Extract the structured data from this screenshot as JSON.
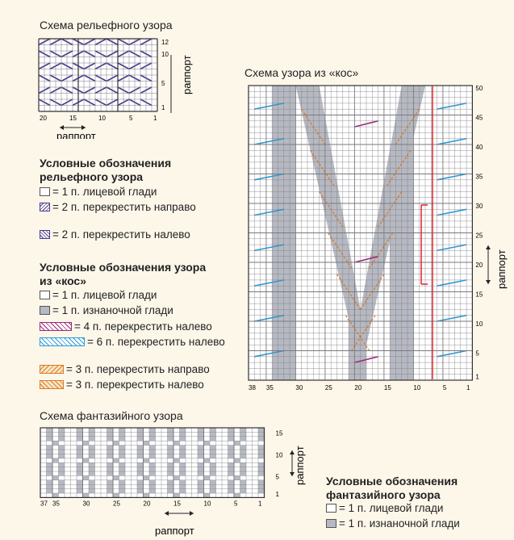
{
  "relief": {
    "title": "Схема рельефного узора",
    "row_labels": [
      "12",
      "10",
      "5",
      "1"
    ],
    "col_labels": [
      "20",
      "15",
      "10",
      "5",
      "1"
    ],
    "rapport_v": "раппорт",
    "rapport_h": "раппорт",
    "legend_title": "Условные обозначения рельефного узора",
    "legend": [
      {
        "text": "= 1 п. лицевой глади",
        "icon": "plain-cell-icon"
      },
      {
        "text": "= 2 п. перекрестить направо",
        "icon": "cross-right-icon"
      },
      {
        "text": "= 2 п. перекрестить налево",
        "icon": "cross-left-icon"
      }
    ]
  },
  "cables": {
    "title": "Схема узора из «кос»",
    "row_labels": [
      "50",
      "45",
      "40",
      "35",
      "30",
      "25",
      "20",
      "15",
      "10",
      "5",
      "1"
    ],
    "col_labels": [
      "38",
      "35",
      "30",
      "25",
      "20",
      "15",
      "10",
      "5",
      "1"
    ],
    "rapport_v": "раппорт",
    "legend_title": "Условные обозначения узора из «кос»",
    "legend": [
      {
        "text": "= 1 п. лицевой глади",
        "icon": "plain-cell-icon"
      },
      {
        "text": "= 1 п. изнаночной глади",
        "icon": "purl-cell-icon"
      },
      {
        "text": "= 4 п. перекрестить налево",
        "icon": "cross-4-left-icon"
      },
      {
        "text": "= 6 п. перекрестить налево",
        "icon": "cross-6-left-icon"
      },
      {
        "text": "= 3 п. перекрестить направо",
        "icon": "cross-3-right-icon"
      },
      {
        "text": "= 3 п. перекрестить налево",
        "icon": "cross-3-left-icon"
      }
    ]
  },
  "fancy": {
    "title": "Схема фантазийного узора",
    "row_labels": [
      "15",
      "10",
      "5",
      "1"
    ],
    "col_labels": [
      "37",
      "35",
      "30",
      "25",
      "20",
      "15",
      "10",
      "5",
      "1"
    ],
    "rapport_v": "раппорт",
    "rapport_h": "раппорт",
    "legend_title": "Условные обозначения фантазийного узора",
    "legend": [
      {
        "text": "= 1 п. лицевой глади",
        "icon": "plain-cell-icon"
      },
      {
        "text": "= 1 п. изнаночной глади",
        "icon": "purl-cell-icon"
      }
    ]
  },
  "colors": {
    "purl": "#b7b9c2",
    "grid": "#7a7a80",
    "purple": "#4a3a8a",
    "magenta": "#a0267a",
    "blue": "#2a9ad8",
    "orange": "#e07820",
    "red": "#d8282e"
  }
}
